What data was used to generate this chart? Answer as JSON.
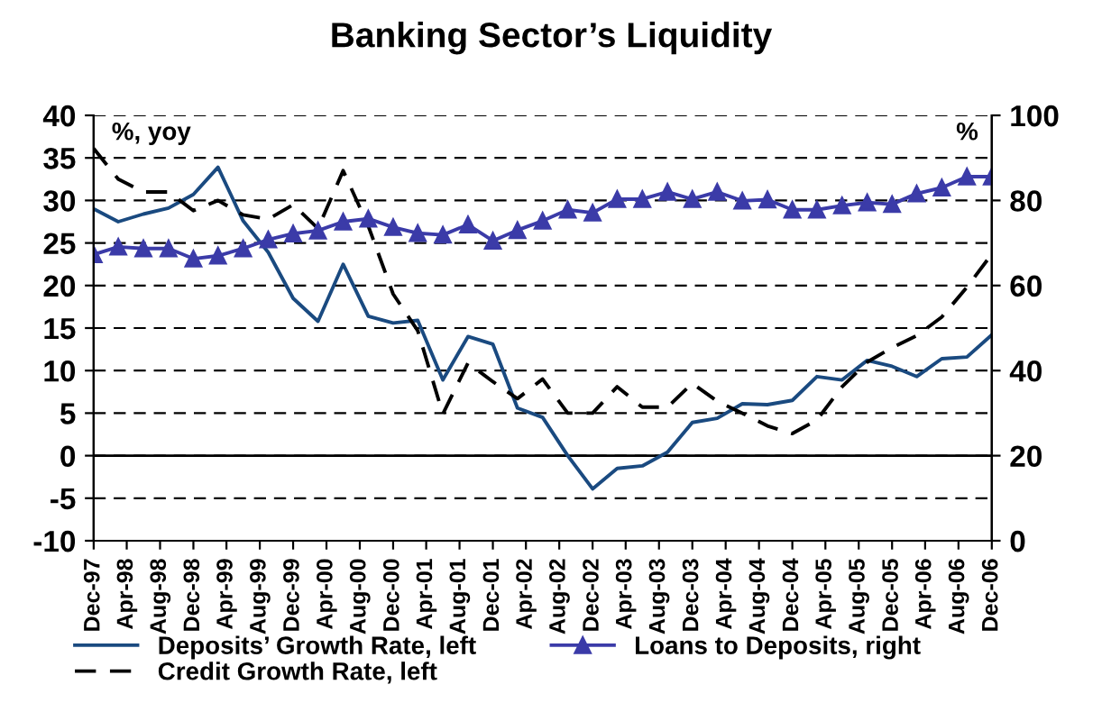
{
  "chart_data": {
    "type": "line",
    "title": "Banking Sector’s Liquidity",
    "ylabel": "%, yoy",
    "y2label": "%",
    "x": [
      "1997-12",
      "1998-03",
      "1998-06",
      "1998-09",
      "1998-12",
      "1999-03",
      "1999-06",
      "1999-09",
      "1999-12",
      "2000-03",
      "2000-06",
      "2000-09",
      "2000-12",
      "2001-03",
      "2001-06",
      "2001-09",
      "2001-12",
      "2002-03",
      "2002-06",
      "2002-09",
      "2002-12",
      "2003-03",
      "2003-06",
      "2003-09",
      "2003-12",
      "2004-03",
      "2004-06",
      "2004-09",
      "2004-12",
      "2005-03",
      "2005-06",
      "2005-09",
      "2005-12",
      "2006-03",
      "2006-06",
      "2006-09",
      "2006-12"
    ],
    "series": [
      {
        "name": "Deposits’ Growth Rate, left",
        "color": "#1a4a80",
        "line_style": "solid",
        "marker": "none",
        "values": [
          29.0,
          27.5,
          28.4,
          29.1,
          30.7,
          33.9,
          27.6,
          23.9,
          18.5,
          15.8,
          22.5,
          16.4,
          15.6,
          15.9,
          8.9,
          14.0,
          13.1,
          5.6,
          4.5,
          0.0,
          -3.9,
          -1.5,
          -1.2,
          0.4,
          3.9,
          4.4,
          6.1,
          6.0,
          6.5,
          9.3,
          8.9,
          11.2,
          10.5,
          9.3,
          11.4,
          11.6,
          14.2
        ]
      },
      {
        "name": "Credit Growth Rate, left",
        "color": "#000000",
        "line_style": "dashed",
        "marker": "none",
        "values": [
          36.1,
          32.5,
          31.0,
          31.0,
          28.8,
          30.0,
          28.3,
          27.8,
          29.5,
          26.7,
          33.5,
          27.0,
          19.0,
          14.7,
          4.9,
          10.9,
          8.7,
          6.7,
          9.0,
          5.0,
          5.0,
          8.1,
          5.7,
          5.7,
          8.5,
          6.4,
          5.0,
          3.5,
          2.6,
          4.2,
          8.1,
          11.0,
          12.7,
          14.1,
          16.3,
          19.8,
          23.7
        ]
      },
      {
        "name": "Loans to Deposits, right",
        "color": "#3b3ba8",
        "line_style": "solid",
        "marker": "triangle",
        "axis": "y2",
        "values": [
          67.3,
          69.1,
          68.7,
          68.7,
          66.3,
          67.0,
          68.7,
          70.8,
          72.2,
          72.9,
          75.0,
          75.7,
          73.7,
          72.3,
          71.9,
          74.3,
          70.5,
          73.0,
          75.2,
          77.8,
          77.1,
          80.3,
          80.3,
          82.0,
          80.3,
          82.0,
          79.9,
          80.2,
          77.8,
          77.8,
          78.8,
          79.5,
          79.1,
          81.6,
          83.0,
          85.6,
          85.6
        ]
      }
    ],
    "xlim": [
      "1997-12",
      "2006-12"
    ],
    "xticks": [
      {
        "value": "1997-12",
        "label": "Dec-97"
      },
      {
        "value": "1998-04",
        "label": "Apr-98"
      },
      {
        "value": "1998-08",
        "label": "Aug-98"
      },
      {
        "value": "1998-12",
        "label": "Dec-98"
      },
      {
        "value": "1999-04",
        "label": "Apr-99"
      },
      {
        "value": "1999-08",
        "label": "Aug-99"
      },
      {
        "value": "1999-12",
        "label": "Dec-99"
      },
      {
        "value": "2000-04",
        "label": "Apr-00"
      },
      {
        "value": "2000-08",
        "label": "Aug-00"
      },
      {
        "value": "2000-12",
        "label": "Dec-00"
      },
      {
        "value": "2001-04",
        "label": "Apr-01"
      },
      {
        "value": "2001-08",
        "label": "Aug-01"
      },
      {
        "value": "2001-12",
        "label": "Dec-01"
      },
      {
        "value": "2002-04",
        "label": "Apr-02"
      },
      {
        "value": "2002-08",
        "label": "Aug-02"
      },
      {
        "value": "2002-12",
        "label": "Dec-02"
      },
      {
        "value": "2003-04",
        "label": "Apr-03"
      },
      {
        "value": "2003-08",
        "label": "Aug-03"
      },
      {
        "value": "2003-12",
        "label": "Dec-03"
      },
      {
        "value": "2004-04",
        "label": "Apr-04"
      },
      {
        "value": "2004-08",
        "label": "Aug-04"
      },
      {
        "value": "2004-12",
        "label": "Dec-04"
      },
      {
        "value": "2005-04",
        "label": "Apr-05"
      },
      {
        "value": "2005-08",
        "label": "Aug-05"
      },
      {
        "value": "2005-12",
        "label": "Dec-05"
      },
      {
        "value": "2006-04",
        "label": "Apr-06"
      },
      {
        "value": "2006-08",
        "label": "Aug-06"
      },
      {
        "value": "2006-12",
        "label": "Dec-06"
      }
    ],
    "ylim": [
      -10,
      40
    ],
    "yticks": [
      -10,
      -5,
      0,
      5,
      10,
      15,
      20,
      25,
      30,
      35,
      40
    ],
    "y2lim": [
      0,
      100
    ],
    "y2ticks": [
      0,
      20,
      40,
      60,
      80,
      100
    ],
    "grid": "y",
    "legend": "bottom",
    "ref_lines": [
      {
        "axis": "y",
        "value": 0,
        "color": "#000000",
        "line_style": "solid"
      }
    ]
  }
}
